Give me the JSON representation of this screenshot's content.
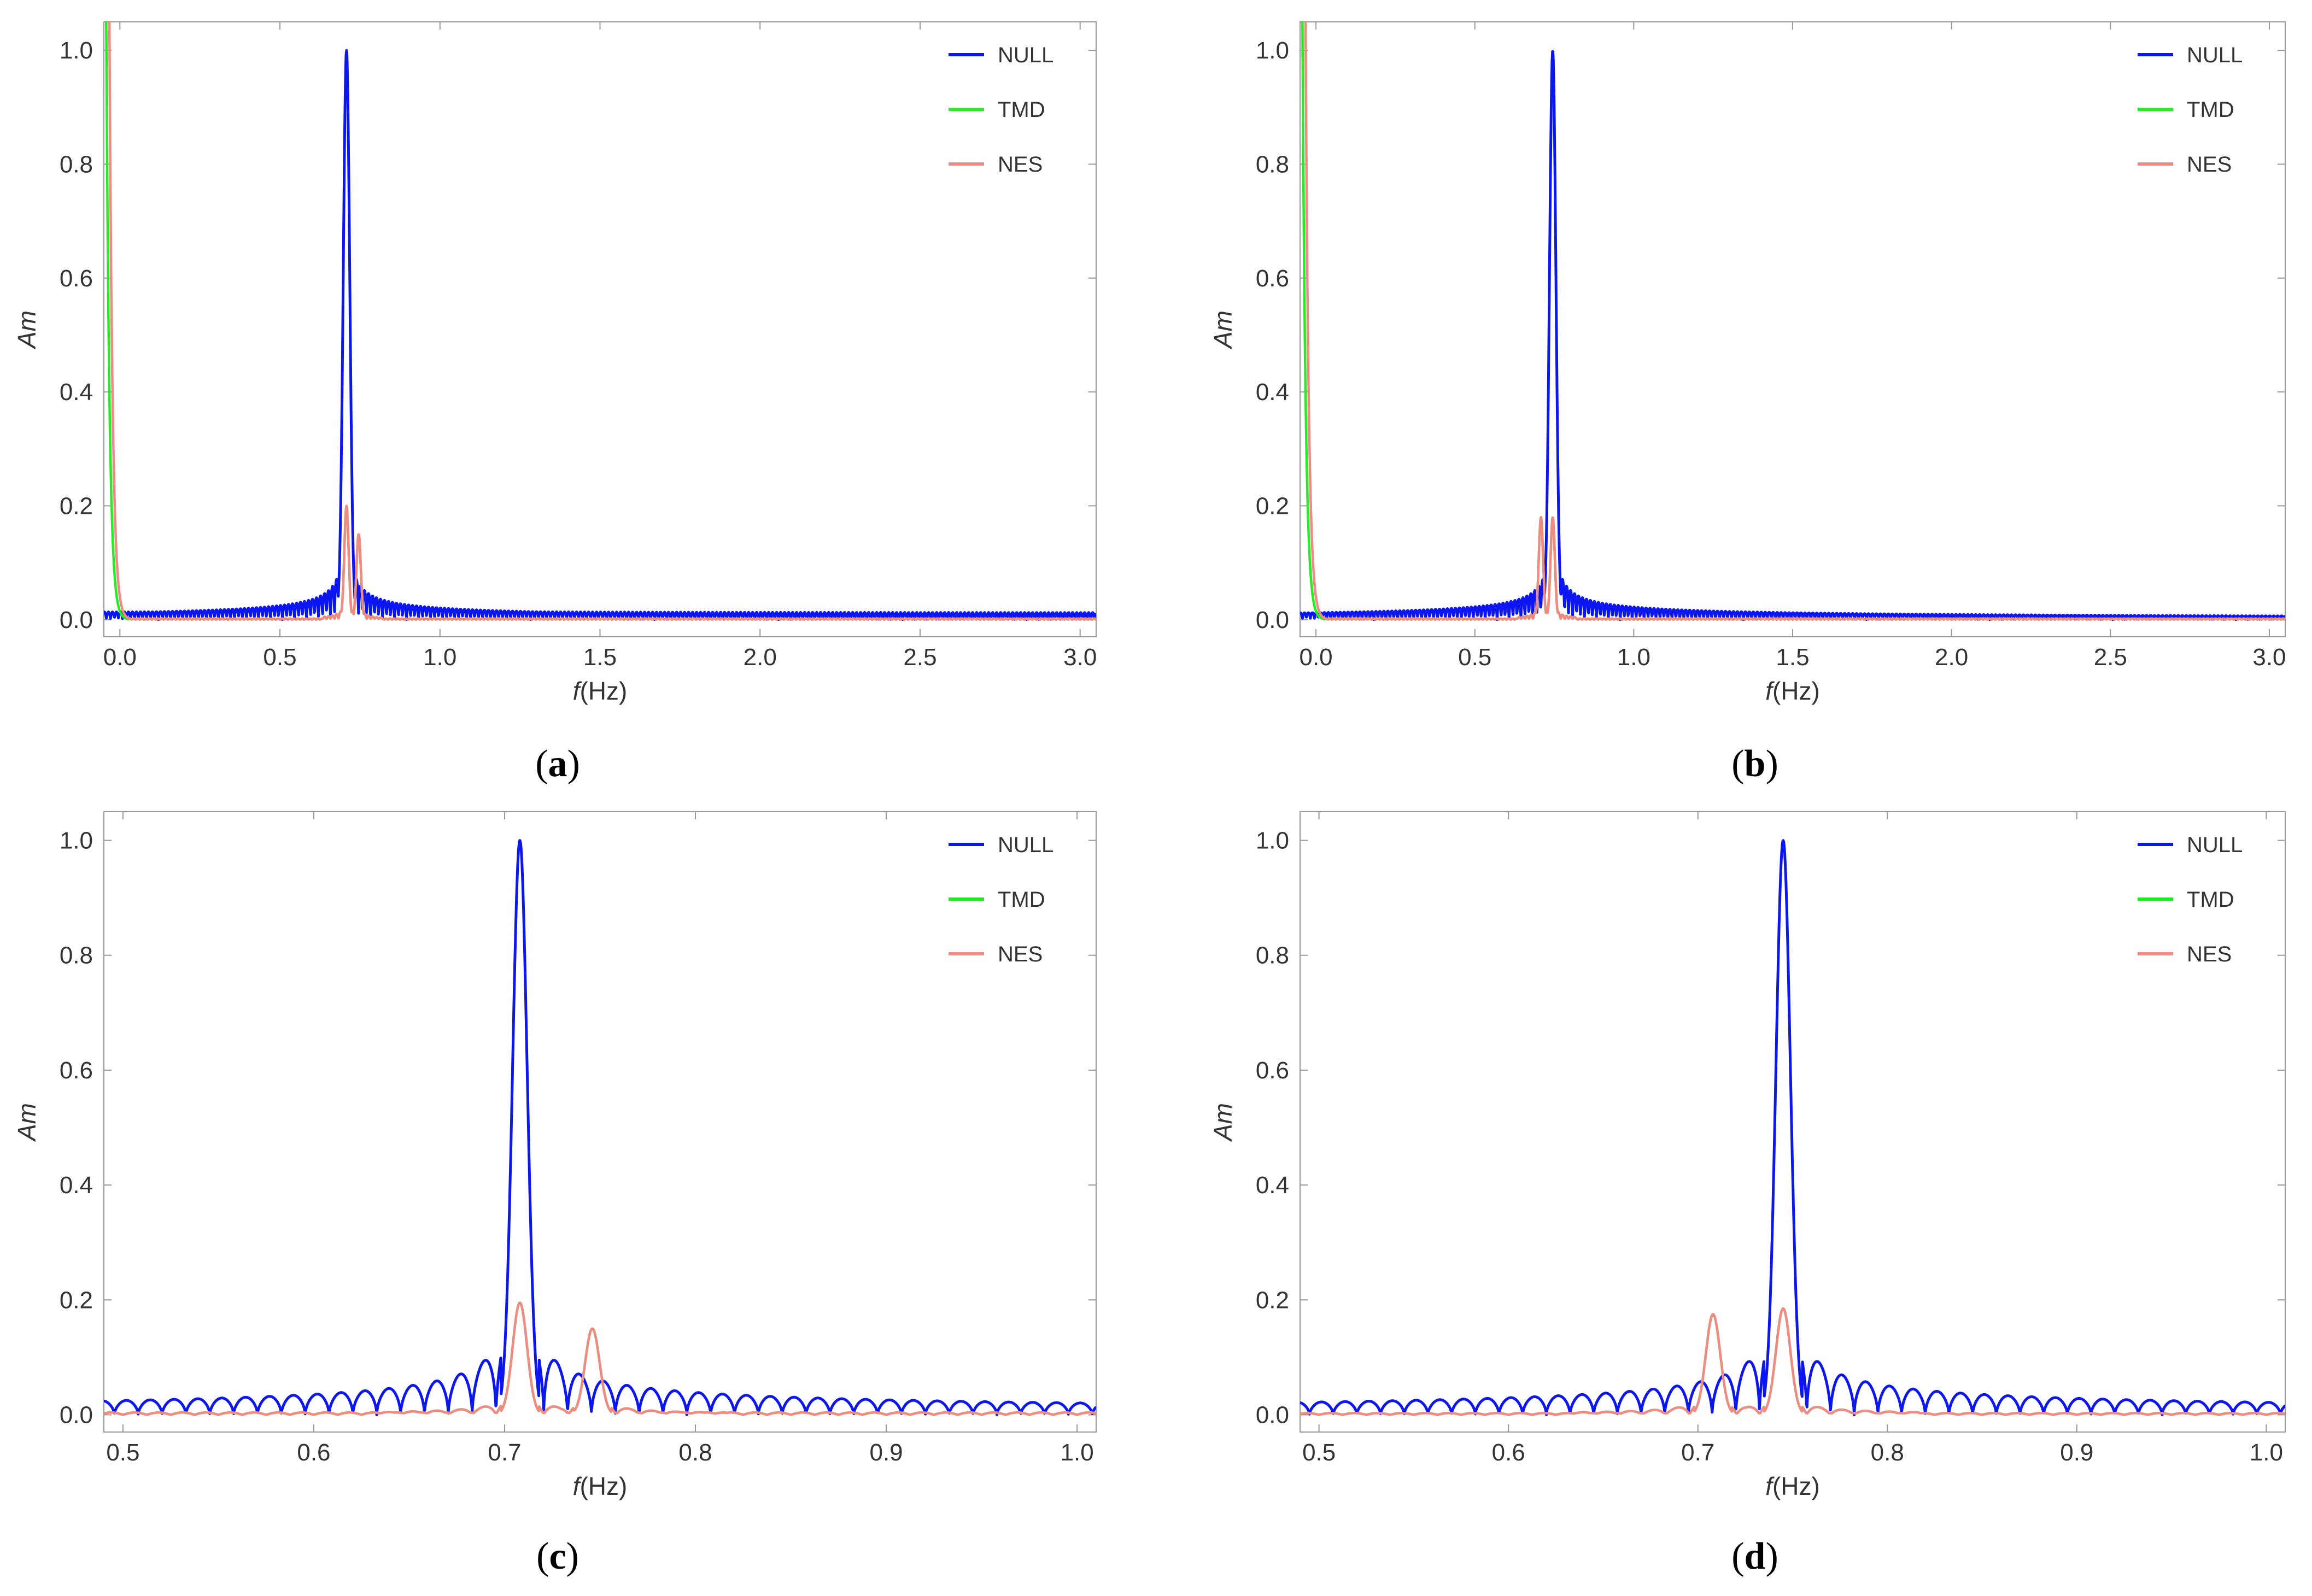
{
  "figure": {
    "panels": [
      {
        "caption_letter": "a",
        "xlabel_var": "f",
        "xlabel_unit": "(Hz)",
        "ylabel": "Am",
        "legend": [
          "NULL",
          "TMD",
          "NES"
        ],
        "colors": {
          "NULL": "#0b16f0",
          "TMD": "#22ee22",
          "NES": "#f08a82"
        }
      },
      {
        "caption_letter": "b",
        "xlabel_var": "f",
        "xlabel_unit": "(Hz)",
        "ylabel": "Am",
        "legend": [
          "NULL",
          "TMD",
          "NES"
        ],
        "colors": {
          "NULL": "#0b16f0",
          "TMD": "#22ee22",
          "NES": "#f08a82"
        }
      },
      {
        "caption_letter": "c",
        "xlabel_var": "f",
        "xlabel_unit": "(Hz)",
        "ylabel": "Am",
        "legend": [
          "NULL",
          "TMD",
          "NES"
        ],
        "colors": {
          "NULL": "#0b16f0",
          "TMD": "#22ee22",
          "NES": "#f08a82"
        }
      },
      {
        "caption_letter": "d",
        "xlabel_var": "f",
        "xlabel_unit": "(Hz)",
        "ylabel": "Am",
        "legend": [
          "NULL",
          "TMD",
          "NES"
        ],
        "colors": {
          "NULL": "#0b16f0",
          "TMD": "#22ee22",
          "NES": "#f08a82"
        }
      }
    ]
  },
  "chart_data": [
    {
      "id": "a",
      "type": "line",
      "title": "",
      "xlabel": "f (Hz)",
      "ylabel": "Am",
      "xlim": [
        -0.05,
        3.05
      ],
      "ylim": [
        -0.03,
        1.05
      ],
      "xticks": [
        "0.0",
        "0.5",
        "1.0",
        "1.5",
        "2.0",
        "2.5",
        "3.0"
      ],
      "xtick_values": [
        0,
        0.5,
        1.0,
        1.5,
        2.0,
        2.5,
        3.0
      ],
      "yticks": [
        "0.0",
        "0.2",
        "0.4",
        "0.6",
        "0.8",
        "1.0"
      ],
      "ytick_values": [
        0,
        0.2,
        0.4,
        0.6,
        0.8,
        1.0
      ],
      "legend_position": "top-right",
      "series": [
        {
          "name": "NULL",
          "f0": 0.708,
          "peak": 1.0,
          "width": 0.012,
          "sidelobes": 0.22,
          "spacing": 0.0125,
          "floor": 0.012
        },
        {
          "name": "TMD",
          "peaks": [
            [
              0.708,
              0.2
            ],
            [
              0.746,
              0.15
            ]
          ],
          "width": 0.008,
          "floor": 0.002,
          "dc": 0.015
        },
        {
          "name": "NES",
          "peaks": [
            [
              0.708,
              0.2
            ],
            [
              0.746,
              0.15
            ]
          ],
          "width": 0.008,
          "floor": 0.002,
          "dc": 0.04
        }
      ]
    },
    {
      "id": "b",
      "type": "line",
      "title": "",
      "xlabel": "f (Hz)",
      "ylabel": "Am",
      "xlim": [
        -0.05,
        3.05
      ],
      "ylim": [
        -0.03,
        1.05
      ],
      "xticks": [
        "0.0",
        "0.5",
        "1.0",
        "1.5",
        "2.0",
        "2.5",
        "3.0"
      ],
      "xtick_values": [
        0,
        0.5,
        1.0,
        1.5,
        2.0,
        2.5,
        3.0
      ],
      "yticks": [
        "0.0",
        "0.2",
        "0.4",
        "0.6",
        "0.8",
        "1.0"
      ],
      "ytick_values": [
        0,
        0.2,
        0.4,
        0.6,
        0.8,
        1.0
      ],
      "legend_position": "top-right",
      "series": [
        {
          "name": "NULL",
          "f0": 0.745,
          "peak": 1.0,
          "width": 0.012,
          "sidelobes": 0.22,
          "spacing": 0.0125,
          "floor": 0.005
        },
        {
          "name": "TMD",
          "peaks": [
            [
              0.708,
              0.18
            ],
            [
              0.745,
              0.18
            ]
          ],
          "width": 0.008,
          "floor": 0.002,
          "dc": 0.015
        },
        {
          "name": "NES",
          "peaks": [
            [
              0.708,
              0.18
            ],
            [
              0.745,
              0.18
            ]
          ],
          "width": 0.008,
          "floor": 0.002,
          "dc": 0.04
        }
      ]
    },
    {
      "id": "c",
      "type": "line",
      "title": "",
      "xlabel": "f (Hz)",
      "ylabel": "Am",
      "xlim": [
        0.49,
        1.01
      ],
      "ylim": [
        -0.03,
        1.05
      ],
      "xticks": [
        "0.5",
        "0.6",
        "0.7",
        "0.8",
        "0.9",
        "1.0"
      ],
      "xtick_values": [
        0.5,
        0.6,
        0.7,
        0.8,
        0.9,
        1.0
      ],
      "yticks": [
        "0.0",
        "0.2",
        "0.4",
        "0.6",
        "0.8",
        "1.0"
      ],
      "ytick_values": [
        0,
        0.2,
        0.4,
        0.6,
        0.8,
        1.0
      ],
      "legend_position": "top-right",
      "series": [
        {
          "name": "NULL",
          "f0": 0.708,
          "peak": 1.0,
          "width": 0.0045,
          "sidelobes": 0.22,
          "spacing": 0.0125,
          "floor": 0.012
        },
        {
          "name": "TMD",
          "peaks": [
            [
              0.708,
              0.195
            ],
            [
              0.746,
              0.15
            ]
          ],
          "width": 0.0045,
          "floor": 0.004,
          "dc": 0
        },
        {
          "name": "NES",
          "peaks": [
            [
              0.708,
              0.195
            ],
            [
              0.746,
              0.15
            ]
          ],
          "width": 0.0045,
          "floor": 0.004,
          "dc": 0
        }
      ]
    },
    {
      "id": "d",
      "type": "line",
      "title": "",
      "xlabel": "f (Hz)",
      "ylabel": "Am",
      "xlim": [
        0.49,
        1.01
      ],
      "ylim": [
        -0.03,
        1.05
      ],
      "xticks": [
        "0.5",
        "0.6",
        "0.7",
        "0.8",
        "0.9",
        "1.0"
      ],
      "xtick_values": [
        0.5,
        0.6,
        0.7,
        0.8,
        0.9,
        1.0
      ],
      "yticks": [
        "0.0",
        "0.2",
        "0.4",
        "0.6",
        "0.8",
        "1.0"
      ],
      "ytick_values": [
        0,
        0.2,
        0.4,
        0.6,
        0.8,
        1.0
      ],
      "legend_position": "top-right",
      "series": [
        {
          "name": "NULL",
          "f0": 0.745,
          "peak": 1.0,
          "width": 0.0045,
          "sidelobes": 0.215,
          "spacing": 0.0125,
          "floor": 0.008
        },
        {
          "name": "TMD",
          "peaks": [
            [
              0.708,
              0.175
            ],
            [
              0.745,
              0.185
            ]
          ],
          "width": 0.0045,
          "floor": 0.003,
          "dc": 0
        },
        {
          "name": "NES",
          "peaks": [
            [
              0.708,
              0.175
            ],
            [
              0.745,
              0.185
            ]
          ],
          "width": 0.0045,
          "floor": 0.003,
          "dc": 0
        }
      ]
    }
  ]
}
